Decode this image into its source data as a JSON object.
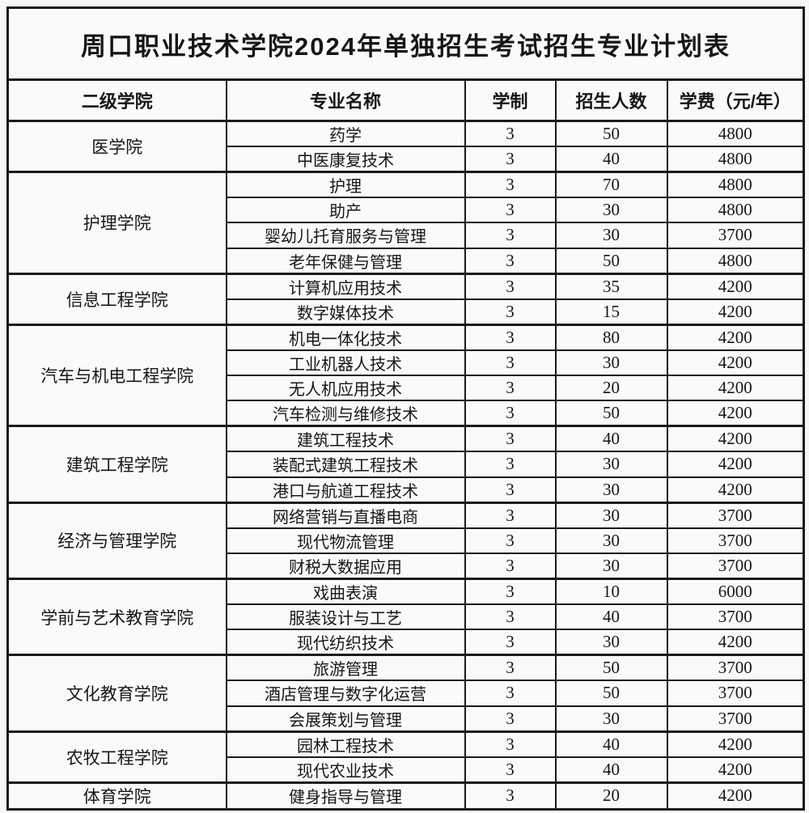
{
  "title": "周口职业技术学院2024年单独招生考试招生专业计划表",
  "colors": {
    "border": "#1a1a1a",
    "background": "#f6f6f6",
    "cell_background": "#fafafa",
    "text": "#161616"
  },
  "table": {
    "headers": [
      "二级学院",
      "专业名称",
      "学制",
      "招生人数",
      "学费（元/年）"
    ],
    "groups": [
      {
        "college": "医学院",
        "majors": [
          [
            "药学",
            "3",
            "50",
            "4800"
          ],
          [
            "中医康复技术",
            "3",
            "40",
            "4800"
          ]
        ]
      },
      {
        "college": "护理学院",
        "majors": [
          [
            "护理",
            "3",
            "70",
            "4800"
          ],
          [
            "助产",
            "3",
            "30",
            "4800"
          ],
          [
            "婴幼儿托育服务与管理",
            "3",
            "30",
            "3700"
          ],
          [
            "老年保健与管理",
            "3",
            "50",
            "4800"
          ]
        ]
      },
      {
        "college": "信息工程学院",
        "majors": [
          [
            "计算机应用技术",
            "3",
            "35",
            "4200"
          ],
          [
            "数字媒体技术",
            "3",
            "15",
            "4200"
          ]
        ]
      },
      {
        "college": "汽车与机电工程学院",
        "majors": [
          [
            "机电一体化技术",
            "3",
            "80",
            "4200"
          ],
          [
            "工业机器人技术",
            "3",
            "30",
            "4200"
          ],
          [
            "无人机应用技术",
            "3",
            "20",
            "4200"
          ],
          [
            "汽车检测与维修技术",
            "3",
            "50",
            "4200"
          ]
        ]
      },
      {
        "college": "建筑工程学院",
        "majors": [
          [
            "建筑工程技术",
            "3",
            "40",
            "4200"
          ],
          [
            "装配式建筑工程技术",
            "3",
            "30",
            "4200"
          ],
          [
            "港口与航道工程技术",
            "3",
            "30",
            "4200"
          ]
        ]
      },
      {
        "college": "经济与管理学院",
        "majors": [
          [
            "网络营销与直播电商",
            "3",
            "30",
            "3700"
          ],
          [
            "现代物流管理",
            "3",
            "30",
            "3700"
          ],
          [
            "财税大数据应用",
            "3",
            "30",
            "3700"
          ]
        ]
      },
      {
        "college": "学前与艺术教育学院",
        "majors": [
          [
            "戏曲表演",
            "3",
            "10",
            "6000"
          ],
          [
            "服装设计与工艺",
            "3",
            "40",
            "3700"
          ],
          [
            "现代纺织技术",
            "3",
            "30",
            "4200"
          ]
        ]
      },
      {
        "college": "文化教育学院",
        "majors": [
          [
            "旅游管理",
            "3",
            "50",
            "3700"
          ],
          [
            "酒店管理与数字化运营",
            "3",
            "50",
            "3700"
          ],
          [
            "会展策划与管理",
            "3",
            "30",
            "3700"
          ]
        ]
      },
      {
        "college": "农牧工程学院",
        "majors": [
          [
            "园林工程技术",
            "3",
            "40",
            "4200"
          ],
          [
            "现代农业技术",
            "3",
            "40",
            "4200"
          ]
        ]
      },
      {
        "college": "体育学院",
        "majors": [
          [
            "健身指导与管理",
            "3",
            "20",
            "4200"
          ]
        ]
      }
    ]
  }
}
